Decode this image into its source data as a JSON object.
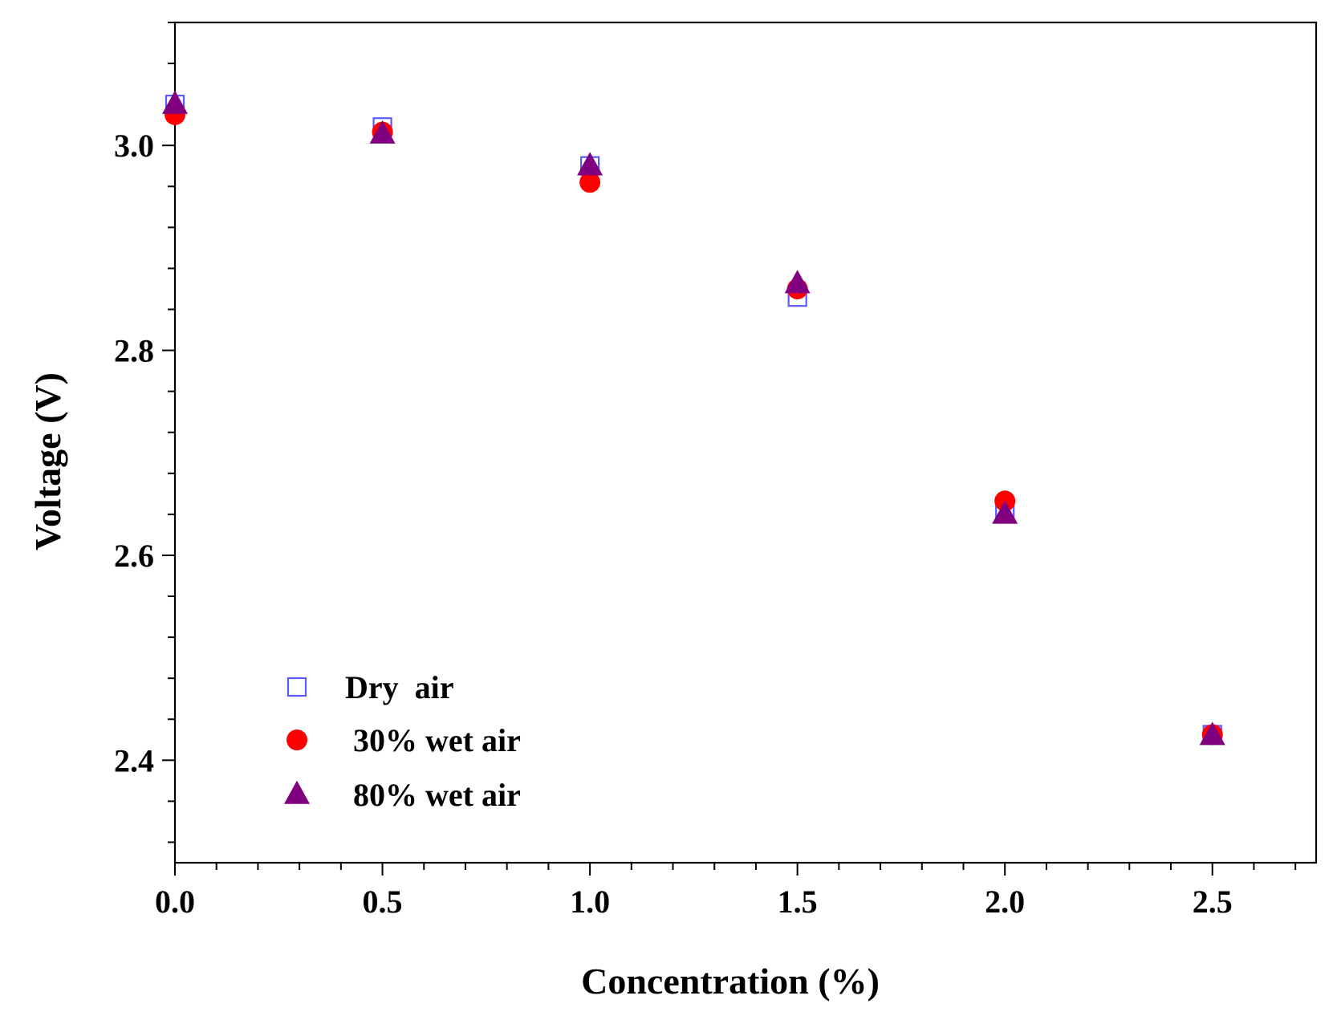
{
  "chart_data": {
    "type": "scatter",
    "title": "",
    "xlabel": "Concentration (%)",
    "ylabel": "Voltage (V)",
    "xlim": [
      0,
      2.75
    ],
    "ylim": [
      2.3,
      3.12
    ],
    "x_ticks": [
      0.0,
      0.5,
      1.0,
      1.5,
      2.0,
      2.5
    ],
    "x_tick_labels": [
      "0.0",
      "0.5",
      "1.0",
      "1.5",
      "2.0",
      "2.5"
    ],
    "x_minor_step": 0.1,
    "y_ticks": [
      2.4,
      2.6,
      2.8,
      3.0
    ],
    "y_tick_labels": [
      "2.4",
      "2.6",
      "2.8",
      "3.0"
    ],
    "y_minor_step": 0.04,
    "grid": false,
    "legend_position": "bottom-left",
    "series": [
      {
        "name": "Dry  air",
        "marker": "open-square",
        "color": "#5a5aff",
        "x": [
          0.0,
          0.5,
          1.0,
          1.5,
          2.0,
          2.5
        ],
        "y": [
          3.04,
          3.018,
          2.98,
          2.852,
          2.645,
          2.425
        ]
      },
      {
        "name": "30% wet air",
        "marker": "filled-circle",
        "color": "#ff0000",
        "x": [
          0.0,
          0.5,
          1.0,
          1.5,
          2.0,
          2.5
        ],
        "y": [
          3.03,
          3.013,
          2.964,
          2.86,
          2.653,
          2.425
        ]
      },
      {
        "name": "80% wet air",
        "marker": "filled-triangle",
        "color": "#800080",
        "x": [
          0.0,
          0.5,
          1.0,
          1.5,
          2.0,
          2.5
        ],
        "y": [
          3.04,
          3.011,
          2.98,
          2.865,
          2.64,
          2.424
        ]
      }
    ]
  }
}
